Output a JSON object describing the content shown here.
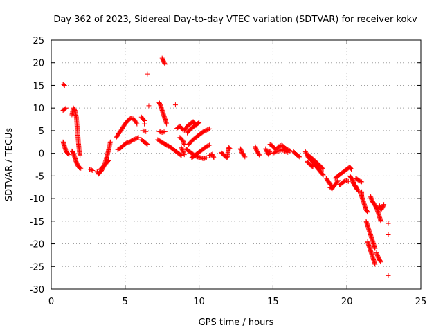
{
  "chart_data": {
    "type": "scatter",
    "title": "Day 362 of 2023, Sidereal Day-to-day VTEC variation (SDTVAR) for receiver kokv",
    "xlabel": "GPS time / hours",
    "ylabel": "SDTVAR / TECUs",
    "xlim": [
      0,
      25
    ],
    "ylim": [
      -30,
      25
    ],
    "xticks": [
      0,
      5,
      10,
      15,
      20,
      25
    ],
    "yticks": [
      -30,
      -25,
      -20,
      -15,
      -10,
      -5,
      0,
      5,
      10,
      15,
      20,
      25
    ],
    "grid": true,
    "marker": "+",
    "color": "#ff0000",
    "series": [
      {
        "name": "SDTVAR",
        "segments": [
          [
            [
              0.8,
              15.3
            ],
            [
              0.9,
              15.0
            ]
          ],
          [
            [
              0.8,
              9.5
            ],
            [
              0.9,
              9.7
            ],
            [
              1.0,
              10.0
            ]
          ],
          [
            [
              0.8,
              2.5
            ],
            [
              0.9,
              1.5
            ],
            [
              1.0,
              0.5
            ],
            [
              1.1,
              0.0
            ],
            [
              1.2,
              -0.3
            ]
          ],
          [
            [
              1.4,
              8.5
            ],
            [
              1.5,
              10.0
            ],
            [
              1.6,
              9.5
            ],
            [
              1.7,
              8.0
            ],
            [
              1.75,
              6.0
            ],
            [
              1.8,
              4.0
            ],
            [
              1.85,
              2.0
            ],
            [
              1.9,
              0.5
            ],
            [
              1.95,
              -0.5
            ]
          ],
          [
            [
              1.4,
              0.5
            ],
            [
              1.5,
              0.0
            ],
            [
              1.6,
              -1.0
            ],
            [
              1.7,
              -2.0
            ],
            [
              1.8,
              -2.7
            ],
            [
              1.9,
              -3.2
            ],
            [
              2.0,
              -3.3
            ]
          ],
          [
            [
              2.6,
              -3.5
            ],
            [
              2.8,
              -3.8
            ]
          ],
          [
            [
              3.1,
              -4.0
            ],
            [
              3.2,
              -4.6
            ],
            [
              3.3,
              -4.2
            ],
            [
              3.4,
              -3.8
            ],
            [
              3.5,
              -3.2
            ],
            [
              3.6,
              -2.5
            ],
            [
              3.7,
              -1.5
            ],
            [
              3.8,
              -0.3
            ],
            [
              3.9,
              1.0
            ],
            [
              4.0,
              2.5
            ]
          ],
          [
            [
              3.3,
              -3.6
            ],
            [
              3.5,
              -3.0
            ],
            [
              3.7,
              -2.3
            ],
            [
              3.9,
              -1.5
            ]
          ],
          [
            [
              4.4,
              3.5
            ],
            [
              4.6,
              4.5
            ],
            [
              4.8,
              5.5
            ],
            [
              5.0,
              6.5
            ],
            [
              5.2,
              7.3
            ],
            [
              5.4,
              7.8
            ],
            [
              5.6,
              7.5
            ],
            [
              5.8,
              6.5
            ]
          ],
          [
            [
              4.5,
              0.8
            ],
            [
              4.7,
              1.2
            ],
            [
              4.9,
              1.8
            ],
            [
              5.1,
              2.3
            ],
            [
              5.3,
              2.5
            ],
            [
              5.5,
              2.9
            ],
            [
              5.7,
              3.2
            ],
            [
              5.9,
              3.5
            ]
          ],
          [
            [
              6.1,
              3.0
            ],
            [
              6.3,
              2.5
            ],
            [
              6.5,
              2.0
            ]
          ],
          [
            [
              6.5,
              17.5
            ]
          ],
          [
            [
              6.6,
              10.5
            ]
          ],
          [
            [
              6.1,
              8.0
            ],
            [
              6.3,
              7.2
            ]
          ],
          [
            [
              6.2,
              5.0
            ],
            [
              6.4,
              4.8
            ]
          ],
          [
            [
              6.3,
              6.5
            ]
          ],
          [
            [
              7.5,
              21.0
            ],
            [
              7.6,
              20.3
            ],
            [
              7.7,
              19.7
            ]
          ],
          [
            [
              7.3,
              11.2
            ],
            [
              7.4,
              10.5
            ],
            [
              7.5,
              9.5
            ],
            [
              7.6,
              8.5
            ],
            [
              7.7,
              7.5
            ],
            [
              7.8,
              6.5
            ]
          ],
          [
            [
              7.3,
              4.8
            ],
            [
              7.5,
              4.6
            ],
            [
              7.7,
              4.8
            ]
          ],
          [
            [
              7.2,
              3.0
            ],
            [
              7.4,
              2.6
            ],
            [
              7.6,
              2.2
            ],
            [
              7.8,
              1.8
            ],
            [
              8.0,
              1.5
            ],
            [
              8.2,
              1.0
            ],
            [
              8.4,
              0.5
            ],
            [
              8.6,
              0.0
            ],
            [
              8.8,
              -0.5
            ]
          ],
          [
            [
              8.4,
              10.7
            ]
          ],
          [
            [
              8.5,
              5.5
            ],
            [
              8.7,
              6.0
            ],
            [
              8.9,
              5.2
            ]
          ],
          [
            [
              8.7,
              3.5
            ],
            [
              8.9,
              2.8
            ],
            [
              9.0,
              2.0
            ]
          ],
          [
            [
              9.1,
              1.0
            ],
            [
              9.3,
              0.5
            ],
            [
              9.5,
              0.0
            ],
            [
              9.7,
              -0.5
            ],
            [
              9.9,
              -0.8
            ],
            [
              10.1,
              -1.0
            ],
            [
              10.3,
              -1.2
            ],
            [
              10.5,
              -1.0
            ]
          ],
          [
            [
              9.0,
              5.0
            ],
            [
              9.2,
              6.0
            ],
            [
              9.4,
              6.5
            ],
            [
              9.6,
              7.0
            ],
            [
              9.8,
              6.2
            ]
          ],
          [
            [
              9.2,
              4.5
            ],
            [
              9.4,
              5.3
            ],
            [
              9.6,
              5.8
            ],
            [
              9.8,
              6.3
            ],
            [
              10.0,
              6.8
            ]
          ],
          [
            [
              9.3,
              2.0
            ],
            [
              9.5,
              2.7
            ],
            [
              9.7,
              3.3
            ],
            [
              9.9,
              3.8
            ],
            [
              10.1,
              4.3
            ],
            [
              10.3,
              4.8
            ],
            [
              10.5,
              5.1
            ],
            [
              10.7,
              5.4
            ]
          ],
          [
            [
              9.5,
              -1.0
            ],
            [
              9.7,
              -0.5
            ],
            [
              9.9,
              0.0
            ],
            [
              10.1,
              0.5
            ],
            [
              10.3,
              1.0
            ],
            [
              10.5,
              1.5
            ],
            [
              10.7,
              1.8
            ]
          ],
          [
            [
              8.8,
              1.2
            ],
            [
              9.0,
              -0.3
            ]
          ],
          [
            [
              10.7,
              -0.5
            ],
            [
              10.9,
              -0.2
            ],
            [
              11.0,
              -1.0
            ]
          ],
          [
            [
              11.5,
              0.2
            ],
            [
              11.7,
              -0.5
            ],
            [
              11.9,
              -1.0
            ],
            [
              12.0,
              1.3
            ],
            [
              12.1,
              1.0
            ]
          ],
          [
            [
              12.8,
              1.0
            ],
            [
              12.9,
              0.2
            ],
            [
              13.1,
              -0.8
            ]
          ],
          [
            [
              13.8,
              1.5
            ],
            [
              13.9,
              0.5
            ],
            [
              14.1,
              -0.5
            ]
          ],
          [
            [
              14.5,
              1.0
            ],
            [
              14.6,
              0.3
            ],
            [
              14.7,
              -0.3
            ],
            [
              14.8,
              0.5
            ]
          ],
          [
            [
              14.8,
              2.0
            ],
            [
              15.0,
              1.5
            ],
            [
              15.2,
              0.8
            ],
            [
              15.4,
              1.5
            ],
            [
              15.6,
              1.8
            ],
            [
              15.8,
              1.2
            ],
            [
              16.0,
              0.8
            ],
            [
              16.2,
              0.5
            ]
          ],
          [
            [
              15.0,
              0.0
            ],
            [
              15.2,
              0.3
            ],
            [
              15.4,
              0.5
            ],
            [
              15.6,
              0.8
            ],
            [
              15.8,
              0.5
            ],
            [
              16.0,
              0.2
            ]
          ],
          [
            [
              16.4,
              0.3
            ],
            [
              16.6,
              -0.3
            ],
            [
              16.8,
              -0.8
            ]
          ],
          [
            [
              17.2,
              0.3
            ],
            [
              17.3,
              -0.3
            ],
            [
              17.4,
              -1.0
            ],
            [
              17.5,
              -1.2
            ],
            [
              17.6,
              -1.5
            ],
            [
              17.7,
              -2.0
            ],
            [
              17.8,
              -2.3
            ],
            [
              17.9,
              -2.8
            ],
            [
              18.0,
              -3.2
            ],
            [
              18.1,
              -3.6
            ],
            [
              18.2,
              -4.0
            ],
            [
              18.3,
              -4.5
            ],
            [
              18.4,
              -4.8
            ]
          ],
          [
            [
              17.4,
              -0.5
            ],
            [
              17.6,
              -1.0
            ],
            [
              17.8,
              -1.6
            ],
            [
              18.0,
              -2.2
            ],
            [
              18.2,
              -2.8
            ],
            [
              18.4,
              -3.5
            ]
          ],
          [
            [
              17.3,
              -1.8
            ],
            [
              17.5,
              -2.5
            ],
            [
              17.7,
              -3.0
            ]
          ],
          [
            [
              18.6,
              -5.5
            ],
            [
              18.7,
              -6.0
            ],
            [
              18.8,
              -6.5
            ],
            [
              18.9,
              -7.0
            ],
            [
              19.0,
              -7.2
            ]
          ],
          [
            [
              18.8,
              -7.5
            ],
            [
              19.0,
              -7.8
            ],
            [
              19.1,
              -7.3
            ],
            [
              19.2,
              -7.0
            ],
            [
              19.3,
              -6.5
            ],
            [
              19.4,
              -6.0
            ]
          ],
          [
            [
              19.2,
              -5.5
            ],
            [
              19.4,
              -5.0
            ],
            [
              19.6,
              -4.5
            ],
            [
              19.8,
              -4.0
            ],
            [
              20.0,
              -3.5
            ],
            [
              20.2,
              -3.0
            ],
            [
              20.3,
              -3.5
            ]
          ],
          [
            [
              19.5,
              -7.0
            ],
            [
              19.7,
              -6.5
            ],
            [
              19.9,
              -6.0
            ],
            [
              20.1,
              -6.2
            ]
          ],
          [
            [
              20.2,
              -5.0
            ],
            [
              20.3,
              -5.5
            ],
            [
              20.4,
              -6.0
            ],
            [
              20.5,
              -7.0
            ],
            [
              20.6,
              -7.5
            ],
            [
              20.7,
              -8.0
            ]
          ],
          [
            [
              20.4,
              -6.5
            ],
            [
              20.6,
              -7.3
            ],
            [
              20.8,
              -8.5
            ]
          ],
          [
            [
              20.6,
              -5.5
            ],
            [
              20.8,
              -6.0
            ],
            [
              21.0,
              -6.3
            ]
          ],
          [
            [
              21.0,
              -8.5
            ],
            [
              21.0,
              -9.5
            ],
            [
              21.1,
              -10.5
            ],
            [
              21.2,
              -11.5
            ],
            [
              21.3,
              -12.5
            ],
            [
              21.4,
              -13.0
            ]
          ],
          [
            [
              21.3,
              -15.0
            ],
            [
              21.4,
              -16.0
            ],
            [
              21.5,
              -17.0
            ],
            [
              21.6,
              -18.0
            ],
            [
              21.7,
              -19.0
            ],
            [
              21.8,
              -20.0
            ],
            [
              21.9,
              -21.0
            ]
          ],
          [
            [
              21.4,
              -19.5
            ],
            [
              21.5,
              -20.5
            ],
            [
              21.6,
              -21.5
            ],
            [
              21.7,
              -22.5
            ],
            [
              21.8,
              -23.5
            ],
            [
              21.9,
              -24.5
            ]
          ],
          [
            [
              21.6,
              -9.5
            ],
            [
              21.7,
              -10.5
            ],
            [
              21.8,
              -11.0
            ],
            [
              21.9,
              -11.5
            ],
            [
              22.0,
              -12.0
            ],
            [
              22.1,
              -13.0
            ],
            [
              22.2,
              -14.0
            ],
            [
              22.3,
              -15.0
            ]
          ],
          [
            [
              22.0,
              -22.0
            ],
            [
              22.1,
              -22.8
            ],
            [
              22.2,
              -23.5
            ],
            [
              22.3,
              -24.0
            ]
          ],
          [
            [
              22.2,
              -11.5
            ],
            [
              22.3,
              -12.5
            ],
            [
              22.4,
              -12.0
            ],
            [
              22.5,
              -11.3
            ]
          ],
          [
            [
              22.8,
              -15.5
            ]
          ],
          [
            [
              22.8,
              -18.0
            ]
          ],
          [
            [
              22.8,
              -27.0
            ]
          ]
        ]
      }
    ]
  }
}
